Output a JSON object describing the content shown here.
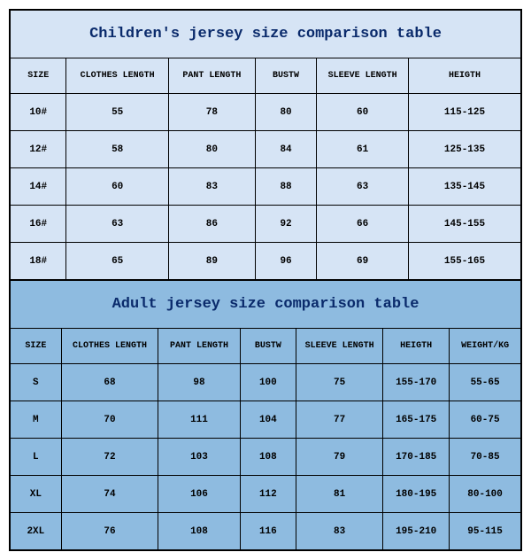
{
  "children": {
    "title": "Children's jersey size comparison table",
    "title_color": "#0a2a6b",
    "bg_color": "#d6e4f5",
    "border_color": "#000000",
    "columns": [
      "SIZE",
      "CLOTHES LENGTH",
      "PANT LENGTH",
      "BUSTW",
      "SLEEVE LENGTH",
      "HEIGTH"
    ],
    "col_widths_pct": [
      11,
      20,
      17,
      12,
      18,
      22
    ],
    "rows": [
      [
        "10#",
        "55",
        "78",
        "80",
        "60",
        "115-125"
      ],
      [
        "12#",
        "58",
        "80",
        "84",
        "61",
        "125-135"
      ],
      [
        "14#",
        "60",
        "83",
        "88",
        "63",
        "135-145"
      ],
      [
        "16#",
        "63",
        "86",
        "92",
        "66",
        "145-155"
      ],
      [
        "18#",
        "65",
        "89",
        "96",
        "69",
        "155-165"
      ]
    ]
  },
  "adult": {
    "title": "Adult jersey size comparison table",
    "title_color": "#0a2a6b",
    "bg_color": "#8ebbe0",
    "border_color": "#000000",
    "columns": [
      "SIZE",
      "CLOTHES LENGTH",
      "PANT LENGTH",
      "BUSTW",
      "SLEEVE LENGTH",
      "HEIGTH",
      "WEIGHT/KG"
    ],
    "col_widths_pct": [
      10,
      19,
      16,
      11,
      17,
      13,
      14
    ],
    "rows": [
      [
        "S",
        "68",
        "98",
        "100",
        "75",
        "155-170",
        "55-65"
      ],
      [
        "M",
        "70",
        "111",
        "104",
        "77",
        "165-175",
        "60-75"
      ],
      [
        "L",
        "72",
        "103",
        "108",
        "79",
        "170-185",
        "70-85"
      ],
      [
        "XL",
        "74",
        "106",
        "112",
        "81",
        "180-195",
        "80-100"
      ],
      [
        "2XL",
        "76",
        "108",
        "116",
        "83",
        "195-210",
        "95-115"
      ]
    ]
  }
}
